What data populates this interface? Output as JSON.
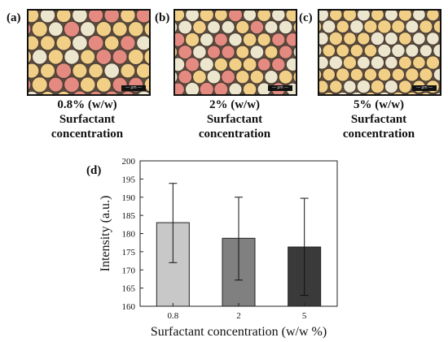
{
  "panels": [
    {
      "label": "(a)",
      "concentration": "0.8% (w/w)",
      "line2": "Surfactant",
      "line3": "concentration",
      "scale_text": "— μm —"
    },
    {
      "label": "(b)",
      "concentration": "2% (w/w)",
      "line2": "Surfactant",
      "line3": "concentration",
      "scale_text": "— μm —"
    },
    {
      "label": "(c)",
      "concentration": "5% (w/w)",
      "line2": "Surfactant",
      "line3": "concentration",
      "scale_text": "— μm —"
    }
  ],
  "colors": {
    "bar_0_8": "#c8c8c8",
    "bar_2": "#808080",
    "bar_5": "#3a3a3a",
    "droplet_pink": "#e58a80",
    "droplet_yellow": "#f2cf86",
    "droplet_cream": "#ede6cf"
  },
  "chart_data": {
    "panel_label": "(d)",
    "type": "bar",
    "categories": [
      "0.8",
      "2",
      "5"
    ],
    "values": [
      183,
      178.7,
      176.3
    ],
    "error_low": [
      172,
      167.2,
      163
    ],
    "error_high": [
      193.8,
      190,
      189.7
    ],
    "xlabel": "Surfactant concentration (w/w %)",
    "ylabel": "Intensity (a.u.)",
    "ylim": [
      160,
      200
    ],
    "yticks": [
      "160",
      "165",
      "170",
      "175",
      "180",
      "185",
      "190",
      "195",
      "200"
    ],
    "grid": false
  }
}
